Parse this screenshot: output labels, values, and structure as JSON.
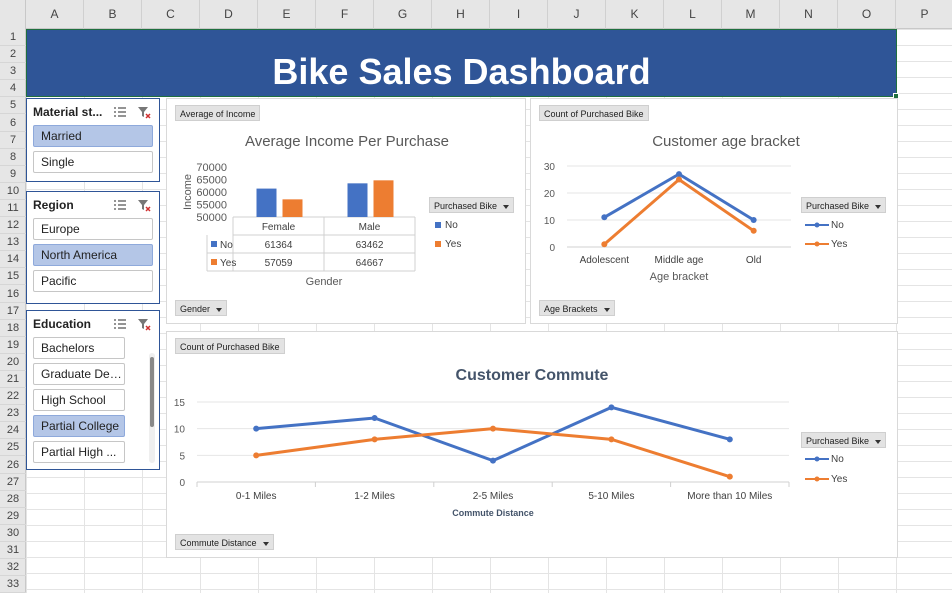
{
  "columns": [
    "A",
    "B",
    "C",
    "D",
    "E",
    "F",
    "G",
    "H",
    "I",
    "J",
    "K",
    "L",
    "M",
    "N",
    "O",
    "P"
  ],
  "rows": [
    "1",
    "2",
    "3",
    "4",
    "5",
    "6",
    "7",
    "8",
    "9",
    "10",
    "11",
    "12",
    "13",
    "14",
    "15",
    "16",
    "17",
    "18",
    "19",
    "20",
    "21",
    "22",
    "23",
    "24",
    "25",
    "26",
    "27",
    "28",
    "29",
    "30",
    "31",
    "32",
    "33"
  ],
  "dashboard": {
    "title": "Bike Sales Dashboard"
  },
  "slicers": {
    "marital": {
      "title": "Material st...",
      "items": [
        {
          "label": "Married",
          "selected": true
        },
        {
          "label": "Single",
          "selected": false
        }
      ]
    },
    "region": {
      "title": "Region",
      "items": [
        {
          "label": "Europe",
          "selected": false
        },
        {
          "label": "North America",
          "selected": true
        },
        {
          "label": "Pacific",
          "selected": false
        }
      ]
    },
    "education": {
      "title": "Education",
      "items": [
        {
          "label": "Bachelors",
          "selected": false
        },
        {
          "label": "Graduate Deg...",
          "selected": false
        },
        {
          "label": "High School",
          "selected": false
        },
        {
          "label": "Partial College",
          "selected": true
        },
        {
          "label": "Partial High ...",
          "selected": false
        }
      ]
    }
  },
  "income_chart": {
    "value_button": "Average of Income",
    "axis_button": "Gender",
    "legend_title": "Purchased Bike",
    "chart_data": {
      "type": "bar",
      "title": "Average Income Per Purchase",
      "xlabel": "Gender",
      "ylabel": "Income",
      "categories": [
        "Female",
        "Male"
      ],
      "series": [
        {
          "name": "No",
          "values": [
            61364,
            63462
          ],
          "color": "#4472c4"
        },
        {
          "name": "Yes",
          "values": [
            57059,
            64667
          ],
          "color": "#ed7d31"
        }
      ],
      "ylim": [
        50000,
        70000
      ],
      "yticks": [
        "70000",
        "65000",
        "60000",
        "55000",
        "50000"
      ]
    }
  },
  "age_chart": {
    "value_button": "Count of Purchased Bike",
    "axis_button": "Age Brackets",
    "legend_title": "Purchased Bike",
    "chart_data": {
      "type": "line",
      "title": "Customer age bracket",
      "xlabel": "Age bracket",
      "categories": [
        "Adolescent",
        "Middle age",
        "Old"
      ],
      "series": [
        {
          "name": "No",
          "values": [
            11,
            27,
            10
          ],
          "color": "#4472c4"
        },
        {
          "name": "Yes",
          "values": [
            1,
            25,
            6
          ],
          "color": "#ed7d31"
        }
      ],
      "ylim": [
        0,
        30
      ],
      "yticks": [
        "30",
        "20",
        "10",
        "0"
      ]
    }
  },
  "commute_chart": {
    "value_button": "Count of Purchased Bike",
    "axis_button": "Commute Distance",
    "legend_title": "Purchased Bike",
    "chart_data": {
      "type": "line",
      "title": "Customer Commute",
      "xlabel": "Commute Distance",
      "categories": [
        "0-1 Miles",
        "1-2 Miles",
        "2-5 Miles",
        "5-10 Miles",
        "More than 10 Miles"
      ],
      "series": [
        {
          "name": "No",
          "values": [
            10,
            12,
            4,
            14,
            8
          ],
          "color": "#4472c4"
        },
        {
          "name": "Yes",
          "values": [
            5,
            8,
            10,
            8,
            1
          ],
          "color": "#ed7d31"
        }
      ],
      "ylim": [
        0,
        15
      ],
      "yticks": [
        "15",
        "10",
        "5",
        "0"
      ]
    }
  }
}
